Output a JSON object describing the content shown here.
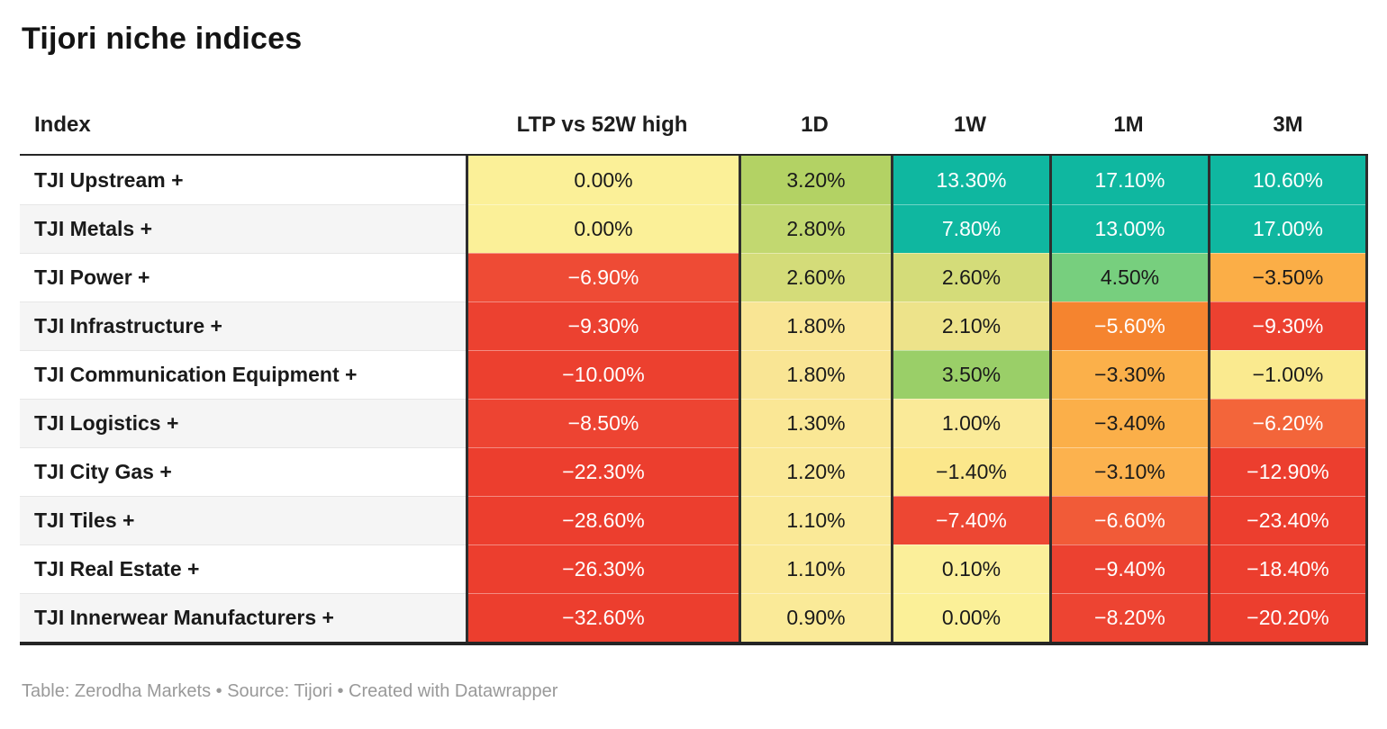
{
  "title": "Tijori niche indices",
  "footer": "Table: Zerodha Markets • Source: Tijori • Created with Datawrapper",
  "colors": {
    "teal_high": "#0FB7A0",
    "red_low": "#EC3E2E",
    "border_dark": "#2e2e2e",
    "text_dark": "#1a1a1a",
    "text_light": "#ffffff"
  },
  "table": {
    "columns": [
      "Index",
      "LTP vs 52W high",
      "1D",
      "1W",
      "1M",
      "3M"
    ],
    "rows": [
      {
        "index": "TJI Upstream +",
        "cells": [
          {
            "text": "0.00%",
            "bg": "#FBF098",
            "fg": "#1a1a1a"
          },
          {
            "text": "3.20%",
            "bg": "#B3D264",
            "fg": "#1a1a1a"
          },
          {
            "text": "13.30%",
            "bg": "#0FB7A0",
            "fg": "#ffffff"
          },
          {
            "text": "17.10%",
            "bg": "#0FB7A0",
            "fg": "#ffffff"
          },
          {
            "text": "10.60%",
            "bg": "#0FB7A0",
            "fg": "#ffffff"
          }
        ]
      },
      {
        "index": "TJI Metals +",
        "cells": [
          {
            "text": "0.00%",
            "bg": "#FBF098",
            "fg": "#1a1a1a"
          },
          {
            "text": "2.80%",
            "bg": "#C2D870",
            "fg": "#1a1a1a"
          },
          {
            "text": "7.80%",
            "bg": "#0FB7A0",
            "fg": "#ffffff"
          },
          {
            "text": "13.00%",
            "bg": "#0FB7A0",
            "fg": "#ffffff"
          },
          {
            "text": "17.00%",
            "bg": "#0FB7A0",
            "fg": "#ffffff"
          }
        ]
      },
      {
        "index": "TJI Power +",
        "cells": [
          {
            "text": "−6.90%",
            "bg": "#EE4B35",
            "fg": "#ffffff"
          },
          {
            "text": "2.60%",
            "bg": "#D4DC79",
            "fg": "#1a1a1a"
          },
          {
            "text": "2.60%",
            "bg": "#D4DC79",
            "fg": "#1a1a1a"
          },
          {
            "text": "4.50%",
            "bg": "#77CF7E",
            "fg": "#1a1a1a"
          },
          {
            "text": "−3.50%",
            "bg": "#FBAE47",
            "fg": "#1a1a1a"
          }
        ]
      },
      {
        "index": "TJI Infrastructure +",
        "cells": [
          {
            "text": "−9.30%",
            "bg": "#EC4130",
            "fg": "#ffffff"
          },
          {
            "text": "1.80%",
            "bg": "#F9E594",
            "fg": "#1a1a1a"
          },
          {
            "text": "2.10%",
            "bg": "#EDE38A",
            "fg": "#1a1a1a"
          },
          {
            "text": "−5.60%",
            "bg": "#F5842F",
            "fg": "#ffffff"
          },
          {
            "text": "−9.30%",
            "bg": "#EC4130",
            "fg": "#ffffff"
          }
        ]
      },
      {
        "index": "TJI Communication Equipment +",
        "cells": [
          {
            "text": "−10.00%",
            "bg": "#EC402F",
            "fg": "#ffffff"
          },
          {
            "text": "1.80%",
            "bg": "#F9E594",
            "fg": "#1a1a1a"
          },
          {
            "text": "3.50%",
            "bg": "#9ACF68",
            "fg": "#1a1a1a"
          },
          {
            "text": "−3.30%",
            "bg": "#FBB04A",
            "fg": "#1a1a1a"
          },
          {
            "text": "−1.00%",
            "bg": "#FAEA8F",
            "fg": "#1a1a1a"
          }
        ]
      },
      {
        "index": "TJI Logistics +",
        "cells": [
          {
            "text": "−8.50%",
            "bg": "#ED4432",
            "fg": "#ffffff"
          },
          {
            "text": "1.30%",
            "bg": "#FAE795",
            "fg": "#1a1a1a"
          },
          {
            "text": "1.00%",
            "bg": "#FAEA98",
            "fg": "#1a1a1a"
          },
          {
            "text": "−3.40%",
            "bg": "#FBAF49",
            "fg": "#1a1a1a"
          },
          {
            "text": "−6.20%",
            "bg": "#F3653A",
            "fg": "#ffffff"
          }
        ]
      },
      {
        "index": "TJI City Gas +",
        "cells": [
          {
            "text": "−22.30%",
            "bg": "#EC3E2E",
            "fg": "#ffffff"
          },
          {
            "text": "1.20%",
            "bg": "#FAE896",
            "fg": "#1a1a1a"
          },
          {
            "text": "−1.40%",
            "bg": "#FBE78B",
            "fg": "#1a1a1a"
          },
          {
            "text": "−3.10%",
            "bg": "#FCB24E",
            "fg": "#1a1a1a"
          },
          {
            "text": "−12.90%",
            "bg": "#EC3E2E",
            "fg": "#ffffff"
          }
        ]
      },
      {
        "index": "TJI Tiles +",
        "cells": [
          {
            "text": "−28.60%",
            "bg": "#EC3E2E",
            "fg": "#ffffff"
          },
          {
            "text": "1.10%",
            "bg": "#FAE997",
            "fg": "#1a1a1a"
          },
          {
            "text": "−7.40%",
            "bg": "#ED4733",
            "fg": "#ffffff"
          },
          {
            "text": "−6.60%",
            "bg": "#F15B38",
            "fg": "#ffffff"
          },
          {
            "text": "−23.40%",
            "bg": "#EC3E2E",
            "fg": "#ffffff"
          }
        ]
      },
      {
        "index": "TJI Real Estate +",
        "cells": [
          {
            "text": "−26.30%",
            "bg": "#EC3E2E",
            "fg": "#ffffff"
          },
          {
            "text": "1.10%",
            "bg": "#FAE997",
            "fg": "#1a1a1a"
          },
          {
            "text": "0.10%",
            "bg": "#FBEF9A",
            "fg": "#1a1a1a"
          },
          {
            "text": "−9.40%",
            "bg": "#EC4130",
            "fg": "#ffffff"
          },
          {
            "text": "−18.40%",
            "bg": "#EC3E2E",
            "fg": "#ffffff"
          }
        ]
      },
      {
        "index": "TJI Innerwear Manufacturers +",
        "cells": [
          {
            "text": "−32.60%",
            "bg": "#EC3E2E",
            "fg": "#ffffff"
          },
          {
            "text": "0.90%",
            "bg": "#FAEA98",
            "fg": "#1a1a1a"
          },
          {
            "text": "0.00%",
            "bg": "#FBF098",
            "fg": "#1a1a1a"
          },
          {
            "text": "−8.20%",
            "bg": "#ED4432",
            "fg": "#ffffff"
          },
          {
            "text": "−20.20%",
            "bg": "#EC3E2E",
            "fg": "#ffffff"
          }
        ]
      }
    ]
  },
  "chart_data": {
    "type": "table",
    "title": "Tijori niche indices",
    "columns": [
      "Index",
      "LTP vs 52W high",
      "1D",
      "1W",
      "1M",
      "3M"
    ],
    "unit": "percent",
    "rows": [
      [
        "TJI Upstream +",
        0.0,
        3.2,
        13.3,
        17.1,
        10.6
      ],
      [
        "TJI Metals +",
        0.0,
        2.8,
        7.8,
        13.0,
        17.0
      ],
      [
        "TJI Power +",
        -6.9,
        2.6,
        2.6,
        4.5,
        -3.5
      ],
      [
        "TJI Infrastructure +",
        -9.3,
        1.8,
        2.1,
        -5.6,
        -9.3
      ],
      [
        "TJI Communication Equipment +",
        -10.0,
        1.8,
        3.5,
        -3.3,
        -1.0
      ],
      [
        "TJI Logistics +",
        -8.5,
        1.3,
        1.0,
        -3.4,
        -6.2
      ],
      [
        "TJI City Gas +",
        -22.3,
        1.2,
        -1.4,
        -3.1,
        -12.9
      ],
      [
        "TJI Tiles +",
        -28.6,
        1.1,
        -7.4,
        -6.6,
        -23.4
      ],
      [
        "TJI Real Estate +",
        -26.3,
        1.1,
        0.1,
        -9.4,
        -18.4
      ],
      [
        "TJI Innerwear Manufacturers +",
        -32.6,
        0.9,
        0.0,
        -8.2,
        -20.2
      ]
    ],
    "color_coding": "heatmap: teal = strong positive, green/yellow = mild, orange/red = negative",
    "footer": "Table: Zerodha Markets • Source: Tijori • Created with Datawrapper"
  }
}
